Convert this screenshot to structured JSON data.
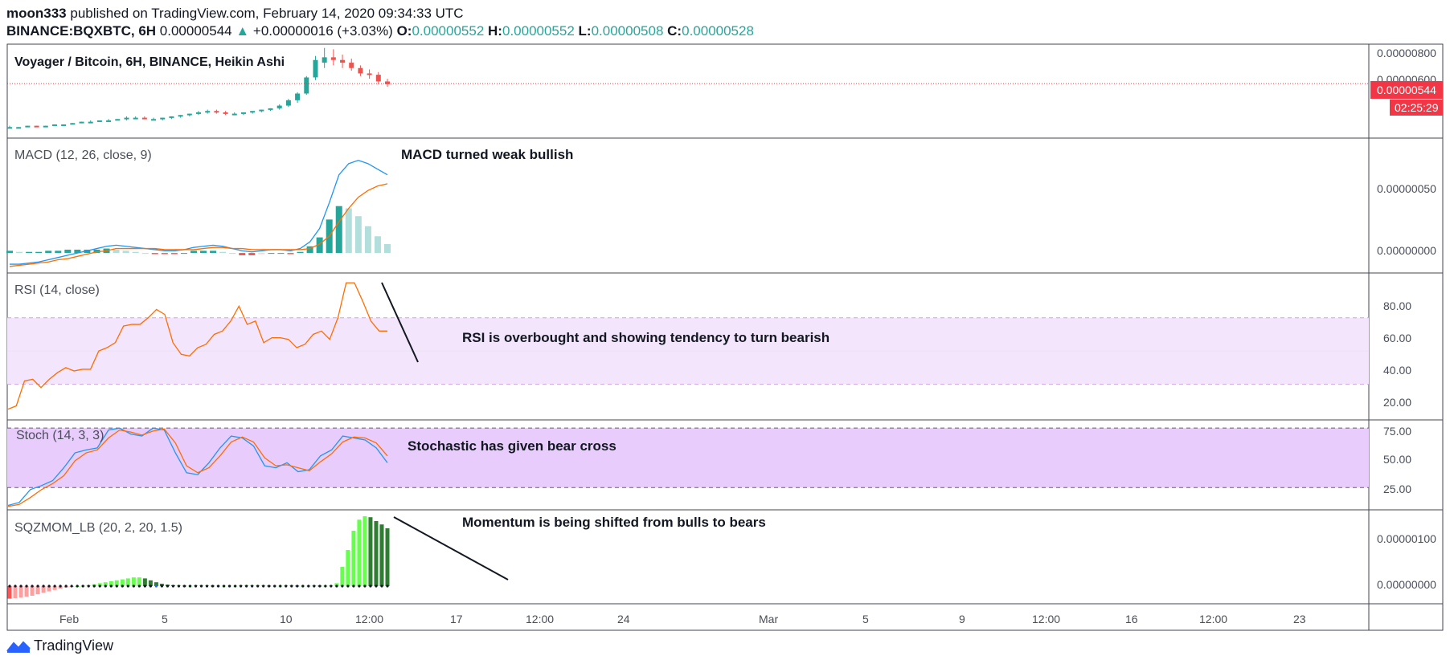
{
  "header": {
    "publisher": "moon333",
    "published_text": "published on TradingView.com, February 14, 2020 09:34:33 UTC",
    "symbol": "BINANCE:BQXBTC, 6H",
    "last": "0.00000544",
    "change": "+0.00000016 (+3.03%)",
    "o_label": "O:",
    "o_value": "0.00000552",
    "h_label": "H:",
    "h_value": "0.00000552",
    "l_label": "L:",
    "l_value": "0.00000508",
    "c_label": "C:",
    "c_value": "0.00000528"
  },
  "footer": {
    "brand": "TradingView"
  },
  "colors": {
    "up": "#26a69a",
    "down": "#ef5350",
    "macd": "#2196f3",
    "signal": "#ff6d00",
    "rsi": "#ff6d00",
    "rsi_band": "#f3e5fc",
    "stoch_band": "#e8ccfb",
    "sqz_up": "#66ff4d",
    "sqz_dark": "#2e7d32",
    "sqz_red": "#ff5252"
  },
  "chart_data": [
    {
      "type": "candlestick",
      "title": "Voyager / Bitcoin, 6H, BINANCE, Heikin Ashi",
      "price_ticks": [
        "0.00000800",
        "0.00000600"
      ],
      "last_price_label": "0.00000544",
      "countdown_label": "02:25:29",
      "ylim": [
        1.5e-06,
        8.2e-06
      ],
      "last_price": 5.44e-06,
      "candles": [
        [
          2.2e-06,
          2.3e-06,
          2.1e-06,
          2.2e-06
        ],
        [
          2.2e-06,
          2.2e-06,
          2.1e-06,
          2.2e-06
        ],
        [
          2.2e-06,
          2.3e-06,
          2.2e-06,
          2.3e-06
        ],
        [
          2.3e-06,
          2.3e-06,
          2.2e-06,
          2.2e-06
        ],
        [
          2.2e-06,
          2.3e-06,
          2.2e-06,
          2.3e-06
        ],
        [
          2.3e-06,
          2.4e-06,
          2.3e-06,
          2.4e-06
        ],
        [
          2.4e-06,
          2.4e-06,
          2.3e-06,
          2.4e-06
        ],
        [
          2.4e-06,
          2.5e-06,
          2.4e-06,
          2.5e-06
        ],
        [
          2.5e-06,
          2.6e-06,
          2.5e-06,
          2.6e-06
        ],
        [
          2.6e-06,
          2.7e-06,
          2.5e-06,
          2.6e-06
        ],
        [
          2.6e-06,
          2.7e-06,
          2.6e-06,
          2.7e-06
        ],
        [
          2.7e-06,
          2.8e-06,
          2.6e-06,
          2.7e-06
        ],
        [
          2.7e-06,
          2.8e-06,
          2.7e-06,
          2.8e-06
        ],
        [
          2.8e-06,
          3e-06,
          2.7e-06,
          2.9e-06
        ],
        [
          2.9e-06,
          3e-06,
          2.8e-06,
          2.9e-06
        ],
        [
          2.9e-06,
          3e-06,
          2.8e-06,
          2.8e-06
        ],
        [
          2.8e-06,
          2.9e-06,
          2.7e-06,
          2.8e-06
        ],
        [
          2.8e-06,
          2.9e-06,
          2.7e-06,
          2.9e-06
        ],
        [
          2.9e-06,
          3e-06,
          2.8e-06,
          3e-06
        ],
        [
          3e-06,
          3.1e-06,
          2.9e-06,
          3.1e-06
        ],
        [
          3.1e-06,
          3.2e-06,
          3e-06,
          3.2e-06
        ],
        [
          3.2e-06,
          3.4e-06,
          3.1e-06,
          3.3e-06
        ],
        [
          3.3e-06,
          3.5e-06,
          3.2e-06,
          3.4e-06
        ],
        [
          3.4e-06,
          3.5e-06,
          3.2e-06,
          3.3e-06
        ],
        [
          3.3e-06,
          3.4e-06,
          3.1e-06,
          3.2e-06
        ],
        [
          3.2e-06,
          3.3e-06,
          3.1e-06,
          3.2e-06
        ],
        [
          3.2e-06,
          3.3e-06,
          3.1e-06,
          3.3e-06
        ],
        [
          3.3e-06,
          3.4e-06,
          3.2e-06,
          3.4e-06
        ],
        [
          3.4e-06,
          3.5e-06,
          3.3e-06,
          3.5e-06
        ],
        [
          3.5e-06,
          3.6e-06,
          3.4e-06,
          3.6e-06
        ],
        [
          3.6e-06,
          3.9e-06,
          3.5e-06,
          3.8e-06
        ],
        [
          3.8e-06,
          4.3e-06,
          3.7e-06,
          4.2e-06
        ],
        [
          4.2e-06,
          4.8e-06,
          4e-06,
          4.7e-06
        ],
        [
          4.7e-06,
          6e-06,
          4.6e-06,
          5.9e-06
        ],
        [
          5.9e-06,
          7.5e-06,
          5.7e-06,
          7.2e-06
        ],
        [
          7e-06,
          8.1e-06,
          6.6e-06,
          7.4e-06
        ],
        [
          7.4e-06,
          8e-06,
          6.8e-06,
          7.2e-06
        ],
        [
          7.2e-06,
          7.6e-06,
          6.6e-06,
          7e-06
        ],
        [
          7e-06,
          7.3e-06,
          6.4e-06,
          6.6e-06
        ],
        [
          6.6e-06,
          6.8e-06,
          6e-06,
          6.2e-06
        ],
        [
          6.2e-06,
          6.5e-06,
          5.8e-06,
          6.1e-06
        ],
        [
          6.1e-06,
          6.3e-06,
          5.4e-06,
          5.6e-06
        ],
        [
          5.6e-06,
          5.8e-06,
          5.2e-06,
          5.4e-06
        ]
      ]
    },
    {
      "type": "line",
      "title": "MACD (12, 26, close, 9)",
      "annotation": "MACD turned weak bullish",
      "price_ticks": [
        "0.00000050",
        "0.00000000"
      ],
      "ylim": [
        -1.5e-07,
        1e-06
      ],
      "macd": [
        -1e-07,
        -1e-07,
        -9e-08,
        -8e-08,
        -6e-08,
        -4e-08,
        -2e-08,
        0.0,
        2e-08,
        4e-08,
        6e-08,
        7e-08,
        6e-08,
        5e-08,
        4e-08,
        3e-08,
        2e-08,
        2e-08,
        3e-08,
        5e-08,
        6e-08,
        7e-08,
        6e-08,
        4e-08,
        2e-08,
        1e-08,
        2e-08,
        3e-08,
        3e-08,
        2e-08,
        4e-08,
        1e-07,
        2.2e-07,
        4.5e-07,
        7e-07,
        8e-07,
        8.3e-07,
        8e-07,
        7.5e-07,
        7e-07
      ],
      "signal": [
        -1.2e-07,
        -1.1e-07,
        -1e-07,
        -9e-08,
        -8e-08,
        -6e-08,
        -5e-08,
        -3e-08,
        -1e-08,
        1e-08,
        2e-08,
        4e-08,
        4e-08,
        4e-08,
        4e-08,
        4e-08,
        3e-08,
        3e-08,
        3e-08,
        3e-08,
        4e-08,
        5e-08,
        5e-08,
        4e-08,
        4e-08,
        3e-08,
        3e-08,
        3e-08,
        3e-08,
        3e-08,
        3e-08,
        4e-08,
        8e-08,
        1.5e-07,
        2.8e-07,
        4e-07,
        5e-07,
        5.6e-07,
        6e-07,
        6.2e-07
      ],
      "histogram": [
        2e-08,
        1e-08,
        1e-08,
        1e-08,
        2e-08,
        2e-08,
        3e-08,
        3e-08,
        3e-08,
        3e-08,
        4e-08,
        3e-08,
        2e-08,
        1e-08,
        0.0,
        -1e-08,
        -1e-08,
        -1e-08,
        0.0,
        2e-08,
        2e-08,
        2e-08,
        1e-08,
        0.0,
        -2e-08,
        -2e-08,
        -1e-08,
        0.0,
        0.0,
        -1e-08,
        1e-08,
        6e-08,
        1.4e-07,
        3e-07,
        4.2e-07,
        4e-07,
        3.3e-07,
        2.4e-07,
        1.5e-07,
        8e-08
      ]
    },
    {
      "type": "line",
      "title": "RSI (14, close)",
      "annotation": "RSI is overbought and showing tendency to turn bearish",
      "ticks": [
        "80.00",
        "60.00",
        "40.00",
        "20.00"
      ],
      "ylim": [
        10,
        95
      ],
      "band": [
        30,
        70
      ],
      "rsi": [
        15,
        17,
        32,
        33,
        28,
        33,
        37,
        40,
        38,
        39,
        39,
        50,
        52,
        55,
        65,
        66,
        66,
        70,
        75,
        72,
        55,
        48,
        47,
        52,
        54,
        60,
        62,
        68,
        77,
        66,
        68,
        55,
        58,
        58,
        57,
        52,
        54,
        60,
        62,
        57,
        70,
        91,
        91,
        80,
        68,
        62,
        62
      ]
    },
    {
      "type": "line",
      "title": "Stoch (14, 3, 3)",
      "annotation": "Stochastic has given bear cross",
      "ticks": [
        "75.00",
        "50.00",
        "25.00"
      ],
      "ylim": [
        0,
        85
      ],
      "band": [
        20,
        80
      ],
      "k": [
        2,
        5,
        18,
        22,
        27,
        40,
        55,
        58,
        60,
        78,
        80,
        74,
        72,
        80,
        78,
        55,
        35,
        33,
        45,
        60,
        72,
        70,
        62,
        42,
        40,
        45,
        36,
        38,
        52,
        58,
        72,
        70,
        68,
        60,
        45
      ],
      "d": [
        1,
        3,
        10,
        18,
        24,
        32,
        47,
        55,
        58,
        70,
        78,
        76,
        73,
        77,
        79,
        65,
        42,
        35,
        40,
        52,
        66,
        71,
        66,
        50,
        42,
        43,
        40,
        37,
        46,
        54,
        66,
        71,
        70,
        65,
        52
      ]
    },
    {
      "type": "bar",
      "title": "SQZMOM_LB (20, 2, 20, 1.5)",
      "annotation": "Momentum is being shifted from bulls to bears",
      "price_ticks": [
        "0.00000100",
        "0.00000000"
      ],
      "ylim": [
        -3e-07,
        1.5e-06
      ],
      "values": [
        -2.6e-07,
        -2.5e-07,
        -2.4e-07,
        -2.2e-07,
        -2e-07,
        -1.7e-07,
        -1.4e-07,
        -1.1e-07,
        -8e-08,
        -5e-08,
        -3e-08,
        -1e-08,
        0.0,
        1e-08,
        2e-08,
        4e-08,
        6e-08,
        8e-08,
        1e-07,
        1.2e-07,
        1.4e-07,
        1.6e-07,
        1.8e-07,
        1.8e-07,
        1.6e-07,
        1.2e-07,
        8e-08,
        5e-08,
        3e-08,
        2e-08,
        2e-08,
        1e-08,
        1e-08,
        2e-08,
        2e-08,
        2e-08,
        1e-08,
        1e-08,
        1e-08,
        1e-08,
        1e-08,
        2e-08,
        2e-08,
        2e-08,
        2e-08,
        2e-08,
        1e-08,
        1e-08,
        1e-08,
        2e-08,
        2e-08,
        1e-08,
        1e-08,
        1e-08,
        2e-08,
        1e-08,
        1e-08,
        2e-08,
        6e-08,
        4e-07,
        7.5e-07,
        1.15e-06,
        1.38e-06,
        1.45e-06,
        1.43e-06,
        1.35e-06,
        1.28e-06,
        1.2e-06
      ]
    },
    {
      "type": "time_axis",
      "labels": [
        "Feb",
        "5",
        "10",
        "12:00",
        "17",
        "12:00",
        "24",
        "Mar",
        "5",
        "9",
        "12:00",
        "16",
        "12:00",
        "23"
      ]
    }
  ]
}
